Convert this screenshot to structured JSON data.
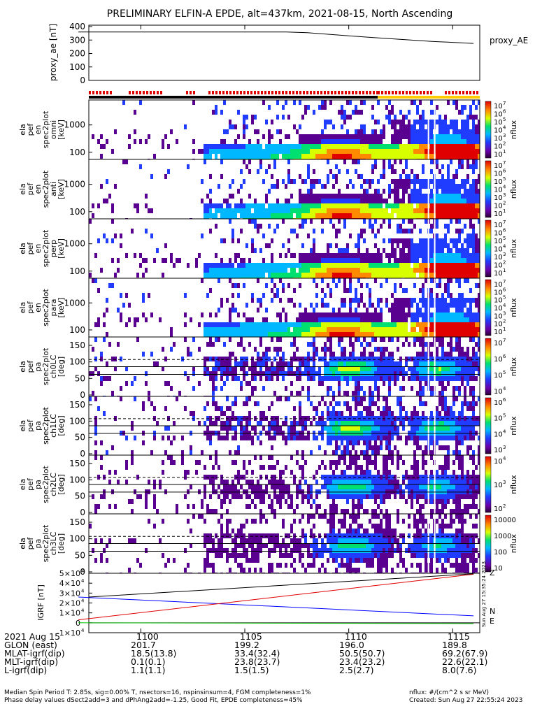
{
  "title": "PRELIMINARY ELFIN-A EPDE, alt=437km, 2021-08-15, North Ascending",
  "colors": {
    "red_bar": "#e00000",
    "black_bar": "#000000",
    "yellow_bar": "#ffcc00",
    "igrf_n": "#0000ff",
    "igrf_e": "#00c000",
    "igrf_z": "#e00000"
  },
  "chart_data": [
    {
      "type": "line",
      "name": "proxy_ae",
      "ylabel": "proxy_ae [nT]",
      "legend": "proxy_AE",
      "yticks": [
        "400",
        "300",
        "200",
        "100",
        "0"
      ],
      "ylim": [
        0,
        400
      ],
      "x": [
        1097.0,
        1102.0,
        1107.0,
        1108.0,
        1111.0,
        1114.0,
        1116.0
      ],
      "y": [
        360,
        360,
        360,
        355,
        320,
        290,
        275
      ]
    },
    {
      "type": "heatmap",
      "name": "spec2plot_omni",
      "ylabel": [
        "ela",
        "pef",
        "en",
        "spec2plot",
        "omni",
        "[keV]"
      ],
      "yticks": [
        "1000",
        "100"
      ],
      "zlabel": "nflux",
      "zticks": [
        "10",
        "10",
        "10",
        "10",
        "10",
        "10",
        "10"
      ],
      "zexp": [
        "7",
        "6",
        "5",
        "4",
        "3",
        "2",
        "1"
      ]
    },
    {
      "type": "heatmap",
      "name": "spec2plot_anti",
      "ylabel": [
        "ela",
        "pef",
        "en",
        "spec2plot",
        "anti",
        "[keV]"
      ],
      "yticks": [
        "1000",
        "100"
      ],
      "zlabel": "nflux",
      "zticks": [
        "10",
        "10",
        "10",
        "10",
        "10",
        "10",
        "10"
      ],
      "zexp": [
        "7",
        "6",
        "5",
        "4",
        "3",
        "2",
        "1"
      ]
    },
    {
      "type": "heatmap",
      "name": "spec2plot_perp",
      "ylabel": [
        "ela",
        "pef",
        "en",
        "spec2plot",
        "perp",
        "[keV]"
      ],
      "yticks": [
        "1000",
        "100"
      ],
      "zlabel": "nflux",
      "zticks": [
        "10",
        "10",
        "10",
        "10",
        "10",
        "10",
        "10"
      ],
      "zexp": [
        "7",
        "6",
        "5",
        "4",
        "3",
        "2",
        "1"
      ]
    },
    {
      "type": "heatmap",
      "name": "spec2plot_para",
      "ylabel": [
        "ela",
        "pef",
        "en",
        "spec2plot",
        "para",
        "[keV]"
      ],
      "yticks": [
        "1000",
        "100"
      ],
      "zlabel": "nflux",
      "zticks": [
        "10",
        "10",
        "10",
        "10",
        "10",
        "10",
        "10"
      ],
      "zexp": [
        "7",
        "6",
        "5",
        "4",
        "3",
        "2",
        "1"
      ]
    },
    {
      "type": "heatmap",
      "name": "spec2plot_ch0LC",
      "ylabel": [
        "ela",
        "pef",
        "pa",
        "spec2plot",
        "ch0LC",
        "[deg]"
      ],
      "yticks": [
        "150",
        "100",
        "50",
        "0"
      ],
      "zlabel": "nflux",
      "zticks": [
        "10",
        "10",
        "10",
        "10"
      ],
      "zexp": [
        "7",
        "6",
        "5",
        "4"
      ]
    },
    {
      "type": "heatmap",
      "name": "spec2plot_ch1LC",
      "ylabel": [
        "ela",
        "pef",
        "pa",
        "spec2plot",
        "ch1LC",
        "[deg]"
      ],
      "yticks": [
        "150",
        "100",
        "50",
        "0"
      ],
      "zlabel": "nflux",
      "zticks": [
        "10",
        "10",
        "10",
        "10"
      ],
      "zexp": [
        "6",
        "5",
        "4",
        "3"
      ]
    },
    {
      "type": "heatmap",
      "name": "spec2plot_ch2LC",
      "ylabel": [
        "ela",
        "pef",
        "pa",
        "spec2plot",
        "ch2LC",
        "[deg]"
      ],
      "yticks": [
        "150",
        "100",
        "50",
        "0"
      ],
      "zlabel": "nflux",
      "zticks": [
        "10",
        "10",
        "10"
      ],
      "zexp": [
        "4",
        "3",
        "2"
      ]
    },
    {
      "type": "heatmap",
      "name": "spec2plot_ch3LC",
      "ylabel": [
        "ela",
        "pef",
        "pa",
        "spec2plot",
        "ch3LC",
        "[deg]"
      ],
      "yticks": [
        "150",
        "100",
        "50",
        "0"
      ],
      "zlabel": "nflux",
      "zticks": [
        "10000",
        "1000",
        "100",
        "10"
      ]
    },
    {
      "type": "line",
      "name": "IGRF",
      "ylabel": "IGRF [nT]",
      "yticks": [
        "5×10",
        "4×10",
        "3×10",
        "2×10",
        "1×10",
        "0",
        "-1×10"
      ],
      "ytick_exp": "4",
      "ylim": [
        -10000,
        50000
      ],
      "x": [
        1097.0,
        1116.0
      ],
      "series": [
        {
          "name": "N",
          "y": [
            26000,
            7000
          ]
        },
        {
          "name": "E",
          "y": [
            0,
            -800
          ]
        },
        {
          "name": "Z",
          "y": [
            3000,
            49000
          ]
        }
      ]
    }
  ],
  "xticks": [
    "1100",
    "1105",
    "1110",
    "1115"
  ],
  "stamp": "Sun Aug 27 15:35:24 2023",
  "table": {
    "date": "2021 Aug 15",
    "rows": [
      {
        "label": "GLON (east)",
        "values": [
          "201.7",
          "199.2",
          "196.0",
          "189.8"
        ]
      },
      {
        "label": "MLAT-igrf(dip)",
        "values": [
          "18.5(13.8)",
          "33.4(32.4)",
          "50.5(50.7)",
          "69.2(67.9)"
        ]
      },
      {
        "label": "MLT-igrf(dip)",
        "values": [
          "0.1(0.1)",
          "23.8(23.7)",
          "23.4(23.2)",
          "22.6(22.1)"
        ]
      },
      {
        "label": "L-igrf(dip)",
        "values": [
          "1.1(1.1)",
          "1.5(1.5)",
          "2.5(2.7)",
          "8.0(7.6)"
        ]
      }
    ]
  },
  "footer": {
    "left1": "Median Spin Period T: 2.85s, sig=0.00% T, nsectors=16, nspinsinsum=4, FGM completeness=1%",
    "left2": "Phase delay values dSect2add=3 and dPhAng2add=-1.25, Good Fit, EPDE completeness=45%",
    "right1": "nflux: #/(cm^2 s sr MeV)",
    "right2": "Created: Sun Aug 27 22:55:24 2023"
  }
}
